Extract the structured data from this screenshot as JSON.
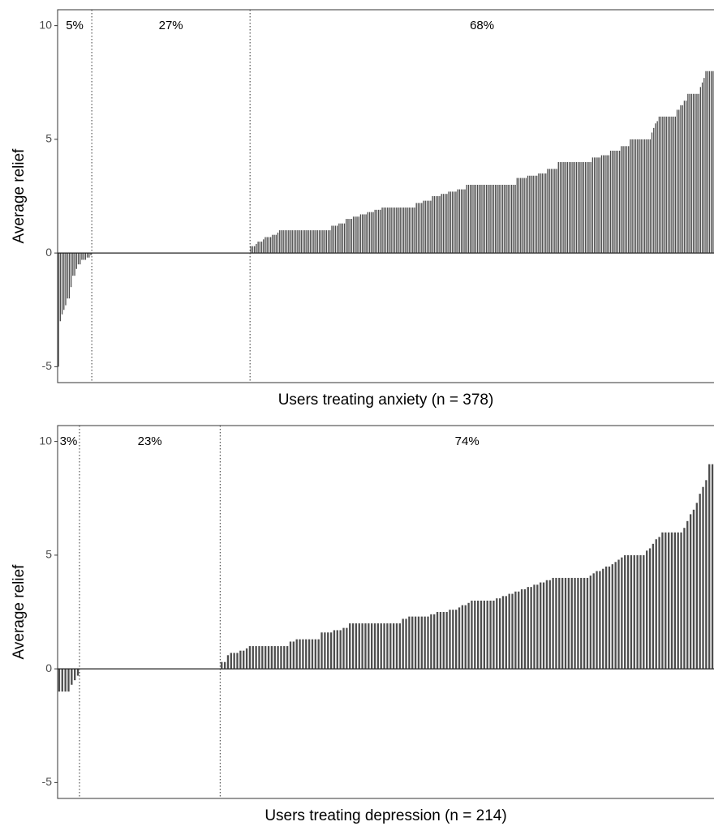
{
  "chart_data": [
    {
      "type": "bar",
      "xlabel": "Users treating anxiety (n = 378)",
      "ylabel": "Average relief",
      "annotations": [
        "5%",
        "27%",
        "68%"
      ],
      "color": "#4d4d4d",
      "ylim": [
        -5.7,
        10.7
      ],
      "yticks": [
        -5,
        0,
        5,
        10
      ],
      "values": [
        -5,
        -3,
        -2.7,
        -2.5,
        -2.3,
        -2,
        -2,
        -1.5,
        -1,
        -1,
        -0.7,
        -0.5,
        -0.5,
        -0.3,
        -0.3,
        -0.3,
        -0.2,
        -0.2,
        -0.1,
        0,
        0,
        0,
        0,
        0,
        0,
        0,
        0,
        0,
        0,
        0,
        0,
        0,
        0,
        0,
        0,
        0,
        0,
        0,
        0,
        0,
        0,
        0,
        0,
        0,
        0,
        0,
        0,
        0,
        0,
        0,
        0,
        0,
        0,
        0,
        0,
        0,
        0,
        0,
        0,
        0,
        0,
        0,
        0,
        0,
        0,
        0,
        0,
        0,
        0,
        0,
        0,
        0,
        0,
        0,
        0,
        0,
        0,
        0,
        0,
        0,
        0,
        0,
        0,
        0,
        0,
        0,
        0,
        0,
        0,
        0,
        0,
        0,
        0,
        0,
        0,
        0,
        0,
        0,
        0,
        0,
        0,
        0,
        0,
        0,
        0,
        0,
        0,
        0.3,
        0.3,
        0.3,
        0.4,
        0.5,
        0.5,
        0.5,
        0.6,
        0.7,
        0.7,
        0.7,
        0.7,
        0.8,
        0.8,
        0.8,
        0.9,
        1,
        1,
        1,
        1,
        1,
        1,
        1,
        1,
        1,
        1,
        1,
        1,
        1,
        1,
        1,
        1,
        1,
        1,
        1,
        1,
        1,
        1,
        1,
        1,
        1,
        1,
        1,
        1,
        1,
        1.2,
        1.2,
        1.2,
        1.2,
        1.3,
        1.3,
        1.3,
        1.3,
        1.5,
        1.5,
        1.5,
        1.5,
        1.6,
        1.6,
        1.6,
        1.6,
        1.7,
        1.7,
        1.7,
        1.7,
        1.8,
        1.8,
        1.8,
        1.8,
        1.9,
        1.9,
        1.9,
        1.9,
        2,
        2,
        2,
        2,
        2,
        2,
        2,
        2,
        2,
        2,
        2,
        2,
        2,
        2,
        2,
        2,
        2,
        2,
        2,
        2.2,
        2.2,
        2.2,
        2.2,
        2.3,
        2.3,
        2.3,
        2.3,
        2.3,
        2.5,
        2.5,
        2.5,
        2.5,
        2.5,
        2.6,
        2.6,
        2.6,
        2.6,
        2.7,
        2.7,
        2.7,
        2.7,
        2.7,
        2.8,
        2.8,
        2.8,
        2.8,
        2.8,
        3,
        3,
        3,
        3,
        3,
        3,
        3,
        3,
        3,
        3,
        3,
        3,
        3,
        3,
        3,
        3,
        3,
        3,
        3,
        3,
        3,
        3,
        3,
        3,
        3,
        3,
        3,
        3,
        3.3,
        3.3,
        3.3,
        3.3,
        3.3,
        3.3,
        3.4,
        3.4,
        3.4,
        3.4,
        3.4,
        3.4,
        3.5,
        3.5,
        3.5,
        3.5,
        3.5,
        3.7,
        3.7,
        3.7,
        3.7,
        3.7,
        3.7,
        4,
        4,
        4,
        4,
        4,
        4,
        4,
        4,
        4,
        4,
        4,
        4,
        4,
        4,
        4,
        4,
        4,
        4,
        4,
        4.2,
        4.2,
        4.2,
        4.2,
        4.2,
        4.3,
        4.3,
        4.3,
        4.3,
        4.3,
        4.5,
        4.5,
        4.5,
        4.5,
        4.5,
        4.5,
        4.7,
        4.7,
        4.7,
        4.7,
        4.7,
        5,
        5,
        5,
        5,
        5,
        5,
        5,
        5,
        5,
        5,
        5,
        5,
        5.3,
        5.5,
        5.7,
        5.8,
        6,
        6,
        6,
        6,
        6,
        6,
        6,
        6,
        6,
        6,
        6.3,
        6.3,
        6.5,
        6.5,
        6.7,
        6.7,
        7,
        7,
        7,
        7,
        7,
        7,
        7,
        7.3,
        7.5,
        7.7,
        8,
        8,
        8,
        8,
        8
      ]
    },
    {
      "type": "bar",
      "xlabel": "Users treating depression (n = 214)",
      "ylabel": "Average relief",
      "annotations": [
        "3%",
        "23%",
        "74%"
      ],
      "color": "#4d4d4d",
      "ylim": [
        -5.7,
        10.7
      ],
      "yticks": [
        -5,
        0,
        5,
        10
      ],
      "values": [
        -1,
        -1,
        -1,
        -1,
        -0.7,
        -0.5,
        -0.3,
        0,
        0,
        0,
        0,
        0,
        0,
        0,
        0,
        0,
        0,
        0,
        0,
        0,
        0,
        0,
        0,
        0,
        0,
        0,
        0,
        0,
        0,
        0,
        0,
        0,
        0,
        0,
        0,
        0,
        0,
        0,
        0,
        0,
        0,
        0,
        0,
        0,
        0,
        0,
        0,
        0,
        0,
        0,
        0,
        0,
        0.3,
        0.3,
        0.6,
        0.7,
        0.7,
        0.7,
        0.8,
        0.8,
        0.9,
        1,
        1,
        1,
        1,
        1,
        1,
        1,
        1,
        1,
        1,
        1,
        1,
        1,
        1.2,
        1.2,
        1.3,
        1.3,
        1.3,
        1.3,
        1.3,
        1.3,
        1.3,
        1.3,
        1.6,
        1.6,
        1.6,
        1.6,
        1.7,
        1.7,
        1.7,
        1.8,
        1.8,
        2,
        2,
        2,
        2,
        2,
        2,
        2,
        2,
        2,
        2,
        2,
        2,
        2,
        2,
        2,
        2,
        2,
        2.2,
        2.2,
        2.3,
        2.3,
        2.3,
        2.3,
        2.3,
        2.3,
        2.3,
        2.4,
        2.4,
        2.5,
        2.5,
        2.5,
        2.5,
        2.6,
        2.6,
        2.6,
        2.7,
        2.8,
        2.8,
        2.9,
        3,
        3,
        3,
        3,
        3,
        3,
        3,
        3,
        3.1,
        3.1,
        3.2,
        3.2,
        3.3,
        3.3,
        3.4,
        3.4,
        3.5,
        3.5,
        3.6,
        3.6,
        3.7,
        3.7,
        3.8,
        3.8,
        3.9,
        3.9,
        4,
        4,
        4,
        4,
        4,
        4,
        4,
        4,
        4,
        4,
        4,
        4,
        4.1,
        4.2,
        4.3,
        4.3,
        4.4,
        4.5,
        4.5,
        4.6,
        4.7,
        4.8,
        4.9,
        5,
        5,
        5,
        5,
        5,
        5,
        5,
        5.2,
        5.3,
        5.5,
        5.7,
        5.8,
        6,
        6,
        6,
        6,
        6,
        6,
        6,
        6.2,
        6.5,
        6.8,
        7,
        7.3,
        7.7,
        8,
        8.3,
        9,
        9
      ]
    }
  ]
}
